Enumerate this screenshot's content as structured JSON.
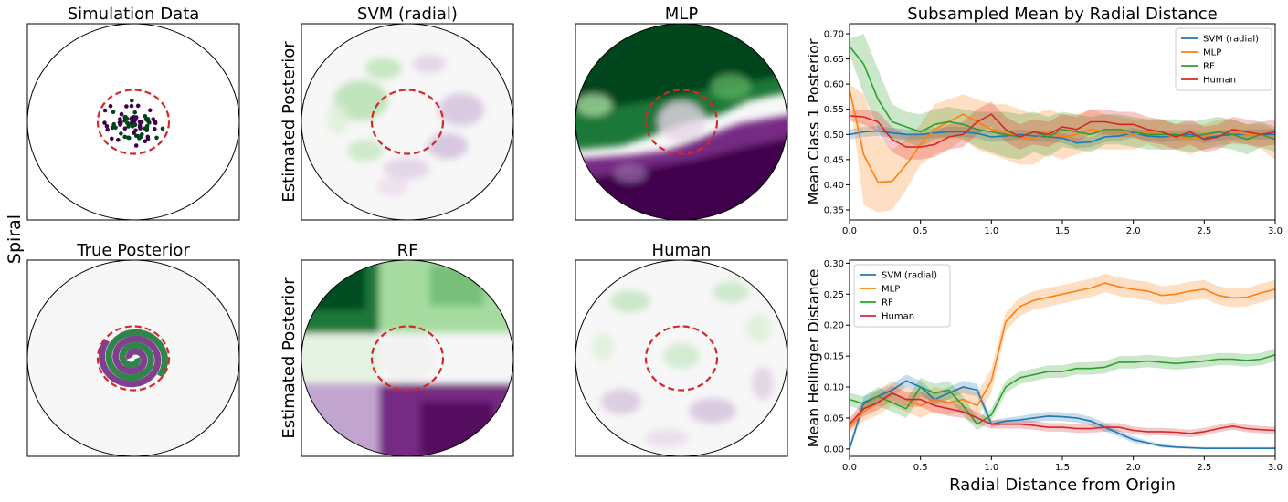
{
  "figure": {
    "row_label": "Spiral",
    "panels": [
      {
        "title": "Simulation Data",
        "ylabel": ""
      },
      {
        "title": "SVM (radial)",
        "ylabel": "Estimated Posterior"
      },
      {
        "title": "MLP",
        "ylabel": ""
      },
      {
        "title": "True Posterior",
        "ylabel": ""
      },
      {
        "title": "RF",
        "ylabel": "Estimated Posterior"
      },
      {
        "title": "Human",
        "ylabel": ""
      }
    ]
  },
  "colors": {
    "svm": "#1f77b4",
    "mlp": "#ff7f0e",
    "rf": "#2ca02c",
    "human": "#d62728",
    "class_green": "#00441b",
    "class_purple": "#40004b",
    "neutral": "#f7f7f7",
    "boundary": "#d62728"
  },
  "chart_data": [
    {
      "type": "line",
      "title": "Subsampled Mean by Radial Distance",
      "xlabel": "",
      "ylabel": "Mean Class 1 Posterior",
      "xlim": [
        0,
        3.0
      ],
      "ylim": [
        0.33,
        0.72
      ],
      "xticks": [
        0.0,
        0.5,
        1.0,
        1.5,
        2.0,
        2.5,
        3.0
      ],
      "xtick_labels": [
        "0.0",
        "0.5",
        "1.0",
        "1.5",
        "2.0",
        "2.5",
        "3.0"
      ],
      "yticks": [
        0.35,
        0.4,
        0.45,
        0.5,
        0.55,
        0.6,
        0.65,
        0.7
      ],
      "ytick_labels": [
        "0.35",
        "0.40",
        "0.45",
        "0.50",
        "0.55",
        "0.60",
        "0.65",
        "0.70"
      ],
      "legend_position": "top-right",
      "x": [
        0.0,
        0.1,
        0.2,
        0.3,
        0.4,
        0.5,
        0.6,
        0.7,
        0.8,
        0.9,
        1.0,
        1.1,
        1.2,
        1.3,
        1.4,
        1.5,
        1.6,
        1.7,
        1.8,
        1.9,
        2.0,
        2.1,
        2.2,
        2.3,
        2.4,
        2.5,
        2.6,
        2.7,
        2.8,
        2.9,
        3.0
      ],
      "series": [
        {
          "name": "SVM (radial)",
          "color_key": "svm",
          "values": [
            0.5,
            0.505,
            0.507,
            0.503,
            0.5,
            0.5,
            0.503,
            0.505,
            0.505,
            0.502,
            0.495,
            0.497,
            0.5,
            0.497,
            0.495,
            0.493,
            0.483,
            0.485,
            0.495,
            0.497,
            0.503,
            0.497,
            0.495,
            0.497,
            0.5,
            0.493,
            0.497,
            0.5,
            0.5,
            0.5,
            0.5
          ],
          "upper": [
            0.51,
            0.515,
            0.517,
            0.513,
            0.51,
            0.51,
            0.513,
            0.515,
            0.515,
            0.512,
            0.505,
            0.507,
            0.51,
            0.507,
            0.505,
            0.503,
            0.493,
            0.495,
            0.505,
            0.507,
            0.513,
            0.507,
            0.505,
            0.507,
            0.51,
            0.503,
            0.507,
            0.51,
            0.51,
            0.51,
            0.51
          ],
          "lower": [
            0.49,
            0.495,
            0.497,
            0.493,
            0.49,
            0.49,
            0.493,
            0.495,
            0.495,
            0.492,
            0.485,
            0.487,
            0.49,
            0.487,
            0.485,
            0.483,
            0.473,
            0.475,
            0.485,
            0.487,
            0.493,
            0.487,
            0.485,
            0.487,
            0.49,
            0.483,
            0.487,
            0.49,
            0.49,
            0.49,
            0.49
          ]
        },
        {
          "name": "MLP",
          "color_key": "mlp",
          "values": [
            0.59,
            0.46,
            0.405,
            0.407,
            0.44,
            0.48,
            0.51,
            0.525,
            0.54,
            0.525,
            0.51,
            0.505,
            0.495,
            0.49,
            0.505,
            0.495,
            0.5,
            0.51,
            0.505,
            0.505,
            0.5,
            0.505,
            0.5,
            0.495,
            0.49,
            0.495,
            0.505,
            0.505,
            0.5,
            0.5,
            0.49
          ],
          "upper": [
            0.6,
            0.58,
            0.5,
            0.47,
            0.49,
            0.52,
            0.56,
            0.57,
            0.58,
            0.57,
            0.56,
            0.56,
            0.55,
            0.54,
            0.55,
            0.54,
            0.54,
            0.55,
            0.54,
            0.535,
            0.53,
            0.53,
            0.53,
            0.52,
            0.52,
            0.52,
            0.53,
            0.53,
            0.52,
            0.52,
            0.51
          ],
          "lower": [
            0.58,
            0.36,
            0.345,
            0.35,
            0.39,
            0.44,
            0.46,
            0.47,
            0.49,
            0.47,
            0.46,
            0.45,
            0.44,
            0.44,
            0.46,
            0.45,
            0.46,
            0.47,
            0.47,
            0.47,
            0.47,
            0.48,
            0.47,
            0.47,
            0.46,
            0.47,
            0.48,
            0.48,
            0.48,
            0.47,
            0.45
          ]
        },
        {
          "name": "RF",
          "color_key": "rf",
          "values": [
            0.675,
            0.64,
            0.57,
            0.525,
            0.515,
            0.505,
            0.52,
            0.525,
            0.52,
            0.51,
            0.505,
            0.5,
            0.495,
            0.505,
            0.495,
            0.51,
            0.505,
            0.5,
            0.51,
            0.51,
            0.505,
            0.5,
            0.5,
            0.5,
            0.495,
            0.5,
            0.505,
            0.5,
            0.49,
            0.5,
            0.49
          ],
          "upper": [
            0.69,
            0.7,
            0.63,
            0.56,
            0.545,
            0.54,
            0.55,
            0.555,
            0.55,
            0.545,
            0.545,
            0.545,
            0.54,
            0.545,
            0.535,
            0.545,
            0.54,
            0.535,
            0.54,
            0.54,
            0.535,
            0.53,
            0.53,
            0.53,
            0.525,
            0.53,
            0.535,
            0.53,
            0.52,
            0.525,
            0.515
          ],
          "lower": [
            0.66,
            0.58,
            0.51,
            0.49,
            0.485,
            0.475,
            0.49,
            0.495,
            0.49,
            0.475,
            0.465,
            0.455,
            0.45,
            0.465,
            0.455,
            0.475,
            0.47,
            0.465,
            0.48,
            0.48,
            0.475,
            0.47,
            0.47,
            0.47,
            0.465,
            0.47,
            0.475,
            0.47,
            0.46,
            0.475,
            0.465
          ]
        },
        {
          "name": "Human",
          "color_key": "human",
          "values": [
            0.537,
            0.535,
            0.525,
            0.49,
            0.475,
            0.475,
            0.48,
            0.495,
            0.5,
            0.525,
            0.54,
            0.51,
            0.495,
            0.505,
            0.5,
            0.515,
            0.51,
            0.525,
            0.525,
            0.52,
            0.52,
            0.51,
            0.505,
            0.495,
            0.505,
            0.49,
            0.495,
            0.51,
            0.505,
            0.5,
            0.505
          ],
          "upper": [
            0.547,
            0.55,
            0.545,
            0.515,
            0.5,
            0.5,
            0.505,
            0.52,
            0.525,
            0.55,
            0.565,
            0.535,
            0.52,
            0.53,
            0.525,
            0.54,
            0.535,
            0.55,
            0.55,
            0.545,
            0.545,
            0.535,
            0.53,
            0.52,
            0.53,
            0.515,
            0.52,
            0.535,
            0.53,
            0.525,
            0.53
          ],
          "lower": [
            0.527,
            0.52,
            0.505,
            0.465,
            0.45,
            0.45,
            0.455,
            0.47,
            0.475,
            0.5,
            0.515,
            0.485,
            0.47,
            0.48,
            0.475,
            0.49,
            0.485,
            0.5,
            0.5,
            0.495,
            0.495,
            0.485,
            0.48,
            0.47,
            0.48,
            0.465,
            0.47,
            0.485,
            0.48,
            0.475,
            0.48
          ]
        }
      ]
    },
    {
      "type": "line",
      "title": "",
      "xlabel": "Radial Distance from Origin",
      "ylabel": "Mean Hellinger Distance",
      "xlim": [
        0,
        3.0
      ],
      "ylim": [
        -0.012,
        0.305
      ],
      "xticks": [
        0.0,
        0.5,
        1.0,
        1.5,
        2.0,
        2.5,
        3.0
      ],
      "xtick_labels": [
        "0.0",
        "0.5",
        "1.0",
        "1.5",
        "2.0",
        "2.5",
        "3.0"
      ],
      "yticks": [
        0.0,
        0.05,
        0.1,
        0.15,
        0.2,
        0.25,
        0.3
      ],
      "ytick_labels": [
        "0.00",
        "0.05",
        "0.10",
        "0.15",
        "0.20",
        "0.25",
        "0.30"
      ],
      "legend_position": "top-left",
      "x": [
        0.0,
        0.1,
        0.2,
        0.3,
        0.4,
        0.5,
        0.6,
        0.7,
        0.8,
        0.9,
        1.0,
        1.1,
        1.2,
        1.3,
        1.4,
        1.5,
        1.6,
        1.7,
        1.8,
        1.9,
        2.0,
        2.1,
        2.2,
        2.3,
        2.4,
        2.5,
        2.6,
        2.7,
        2.8,
        2.9,
        3.0
      ],
      "series": [
        {
          "name": "SVM (radial)",
          "color_key": "svm",
          "values": [
            0.0,
            0.075,
            0.085,
            0.095,
            0.11,
            0.1,
            0.08,
            0.09,
            0.1,
            0.095,
            0.04,
            0.045,
            0.047,
            0.05,
            0.053,
            0.052,
            0.05,
            0.045,
            0.035,
            0.025,
            0.015,
            0.01,
            0.005,
            0.003,
            0.002,
            0.001,
            0.001,
            0.001,
            0.001,
            0.001,
            0.001
          ],
          "upper": [
            0.005,
            0.085,
            0.095,
            0.105,
            0.12,
            0.11,
            0.09,
            0.1,
            0.11,
            0.105,
            0.045,
            0.05,
            0.053,
            0.057,
            0.06,
            0.059,
            0.057,
            0.052,
            0.042,
            0.03,
            0.02,
            0.013,
            0.008,
            0.005,
            0.004,
            0.003,
            0.003,
            0.003,
            0.003,
            0.003,
            0.003
          ],
          "lower": [
            -0.005,
            0.065,
            0.075,
            0.085,
            0.1,
            0.09,
            0.07,
            0.08,
            0.09,
            0.085,
            0.035,
            0.04,
            0.041,
            0.043,
            0.046,
            0.045,
            0.043,
            0.038,
            0.028,
            0.02,
            0.01,
            0.007,
            0.002,
            0.001,
            0.0,
            0.0,
            0.0,
            0.0,
            0.0,
            0.0,
            0.0
          ]
        },
        {
          "name": "MLP",
          "color_key": "mlp",
          "values": [
            0.035,
            0.06,
            0.075,
            0.09,
            0.08,
            0.07,
            0.08,
            0.075,
            0.08,
            0.07,
            0.11,
            0.205,
            0.23,
            0.24,
            0.245,
            0.25,
            0.255,
            0.26,
            0.268,
            0.262,
            0.258,
            0.255,
            0.248,
            0.25,
            0.255,
            0.258,
            0.248,
            0.244,
            0.245,
            0.252,
            0.258
          ],
          "upper": [
            0.045,
            0.075,
            0.095,
            0.11,
            0.1,
            0.09,
            0.1,
            0.095,
            0.1,
            0.09,
            0.13,
            0.22,
            0.245,
            0.255,
            0.26,
            0.265,
            0.27,
            0.275,
            0.283,
            0.277,
            0.273,
            0.27,
            0.263,
            0.265,
            0.27,
            0.273,
            0.263,
            0.259,
            0.26,
            0.267,
            0.273
          ],
          "lower": [
            0.025,
            0.045,
            0.055,
            0.07,
            0.06,
            0.05,
            0.06,
            0.055,
            0.06,
            0.05,
            0.09,
            0.19,
            0.215,
            0.225,
            0.23,
            0.235,
            0.24,
            0.245,
            0.253,
            0.247,
            0.243,
            0.24,
            0.233,
            0.235,
            0.24,
            0.243,
            0.233,
            0.229,
            0.23,
            0.237,
            0.243
          ]
        },
        {
          "name": "RF",
          "color_key": "rf",
          "values": [
            0.08,
            0.073,
            0.085,
            0.075,
            0.065,
            0.1,
            0.09,
            0.095,
            0.07,
            0.04,
            0.055,
            0.1,
            0.115,
            0.12,
            0.125,
            0.125,
            0.13,
            0.13,
            0.132,
            0.14,
            0.14,
            0.142,
            0.14,
            0.138,
            0.14,
            0.142,
            0.145,
            0.145,
            0.143,
            0.145,
            0.152
          ],
          "upper": [
            0.09,
            0.085,
            0.1,
            0.09,
            0.08,
            0.115,
            0.105,
            0.11,
            0.085,
            0.05,
            0.065,
            0.11,
            0.125,
            0.13,
            0.135,
            0.135,
            0.14,
            0.14,
            0.142,
            0.15,
            0.15,
            0.152,
            0.15,
            0.148,
            0.15,
            0.152,
            0.155,
            0.155,
            0.153,
            0.155,
            0.162
          ],
          "lower": [
            0.07,
            0.061,
            0.07,
            0.06,
            0.05,
            0.085,
            0.075,
            0.08,
            0.055,
            0.03,
            0.045,
            0.09,
            0.105,
            0.11,
            0.115,
            0.115,
            0.12,
            0.12,
            0.122,
            0.13,
            0.13,
            0.132,
            0.13,
            0.128,
            0.13,
            0.132,
            0.135,
            0.135,
            0.133,
            0.135,
            0.142
          ]
        },
        {
          "name": "Human",
          "color_key": "human",
          "values": [
            0.04,
            0.065,
            0.075,
            0.09,
            0.08,
            0.08,
            0.07,
            0.065,
            0.06,
            0.05,
            0.04,
            0.04,
            0.04,
            0.038,
            0.035,
            0.035,
            0.033,
            0.033,
            0.035,
            0.035,
            0.03,
            0.028,
            0.028,
            0.027,
            0.025,
            0.028,
            0.033,
            0.037,
            0.033,
            0.031,
            0.03
          ],
          "upper": [
            0.05,
            0.077,
            0.087,
            0.102,
            0.092,
            0.092,
            0.082,
            0.077,
            0.07,
            0.06,
            0.047,
            0.047,
            0.047,
            0.045,
            0.042,
            0.042,
            0.04,
            0.04,
            0.042,
            0.042,
            0.036,
            0.034,
            0.034,
            0.033,
            0.031,
            0.034,
            0.039,
            0.043,
            0.039,
            0.037,
            0.036
          ],
          "lower": [
            0.03,
            0.053,
            0.063,
            0.078,
            0.068,
            0.068,
            0.058,
            0.053,
            0.05,
            0.04,
            0.033,
            0.033,
            0.033,
            0.031,
            0.028,
            0.028,
            0.026,
            0.026,
            0.028,
            0.028,
            0.024,
            0.022,
            0.022,
            0.021,
            0.019,
            0.022,
            0.027,
            0.031,
            0.027,
            0.025,
            0.024
          ]
        }
      ]
    }
  ]
}
